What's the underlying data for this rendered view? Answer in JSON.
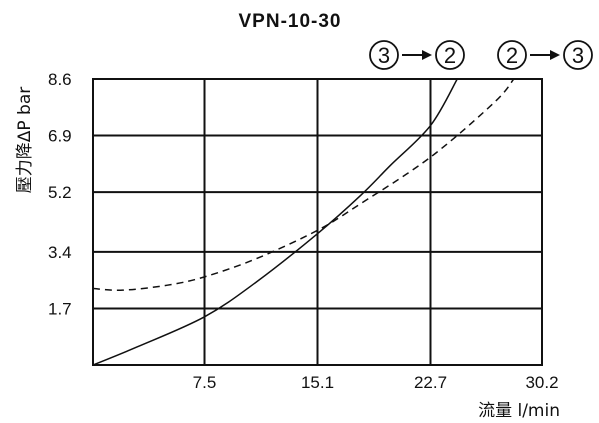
{
  "chart_data": {
    "type": "line",
    "title": "VPN-10-30",
    "xlabel": "流量 l/min",
    "ylabel": "壓力降ΔP bar",
    "xlim": [
      0,
      30.2
    ],
    "ylim": [
      0,
      8.6
    ],
    "x_ticks": [
      "7.5",
      "15.1",
      "22.7",
      "30.2"
    ],
    "y_ticks": [
      "1.7",
      "3.4",
      "5.2",
      "6.9",
      "8.6"
    ],
    "x_tick_values": [
      7.5,
      15.1,
      22.7,
      30.2
    ],
    "y_tick_values": [
      1.7,
      3.4,
      5.2,
      6.9,
      8.6
    ],
    "grid": true,
    "legend": [
      {
        "from": "3",
        "to": "2",
        "style": "solid"
      },
      {
        "from": "2",
        "to": "3",
        "style": "dashed"
      }
    ],
    "series": [
      {
        "style": "solid",
        "x": [
          0,
          3,
          7.5,
          11,
          15.1,
          18,
          20,
          22.7,
          24.5
        ],
        "y": [
          0,
          0.55,
          1.45,
          2.5,
          3.95,
          5.1,
          6.0,
          7.2,
          8.6
        ]
      },
      {
        "style": "dashed",
        "x": [
          0,
          2,
          5,
          7.5,
          11,
          15.1,
          18,
          22.7,
          27,
          28.3
        ],
        "y": [
          2.3,
          2.25,
          2.4,
          2.65,
          3.2,
          4.05,
          4.85,
          6.25,
          7.9,
          8.6
        ]
      }
    ]
  }
}
